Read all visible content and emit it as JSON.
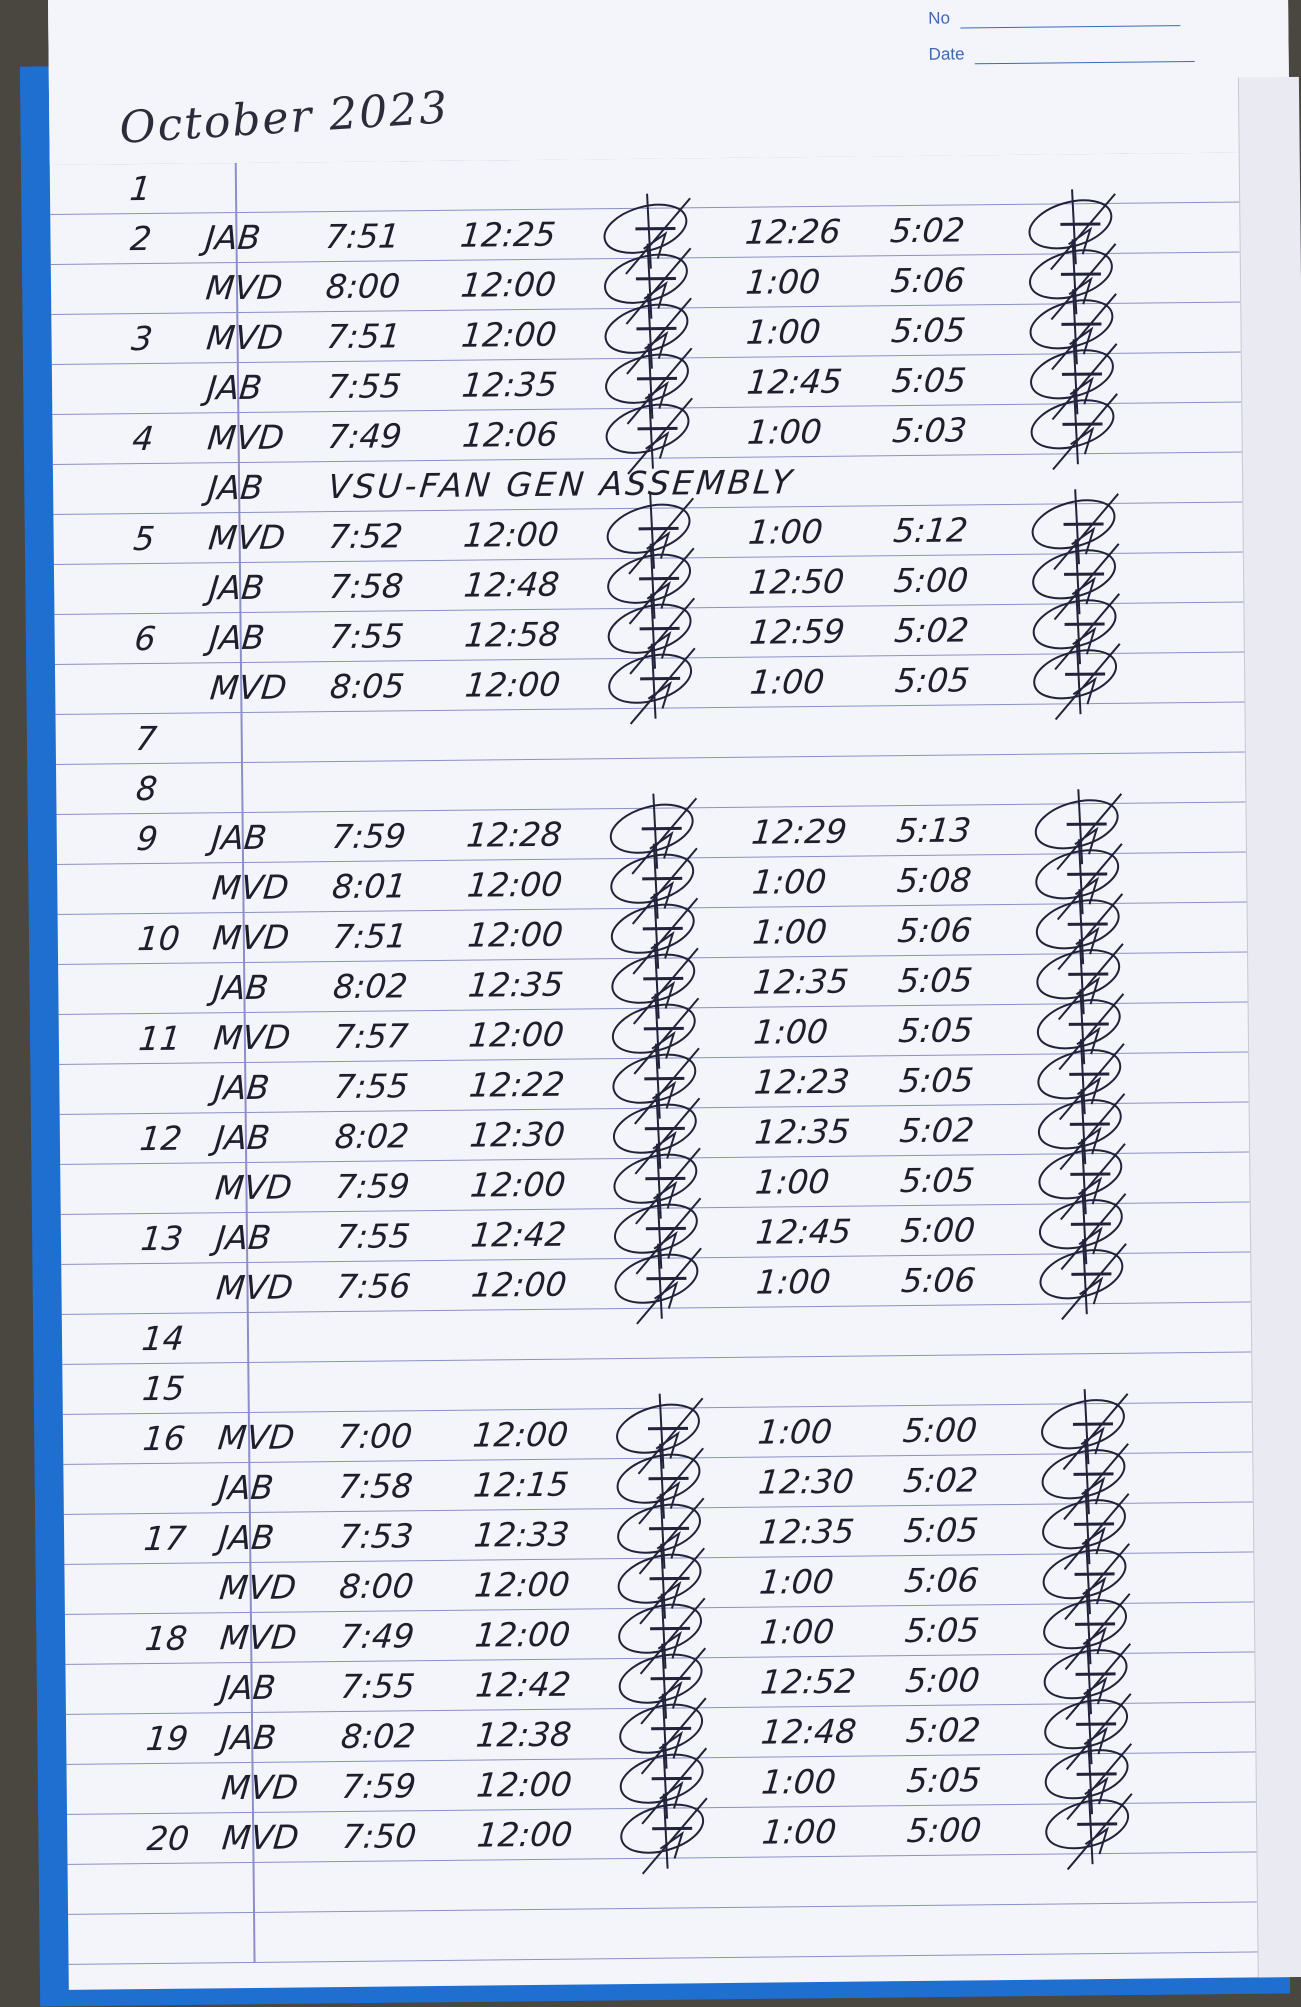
{
  "header": {
    "no_label": "No",
    "date_label": "Date"
  },
  "title": "October 2023",
  "colors": {
    "ink": "#1e1e2c",
    "ruling": "#8c8fc8",
    "cover": "#1f6fd0",
    "paper": "#f4f5fa"
  },
  "entries": [
    {
      "day": "1",
      "initials": "",
      "time_in": "",
      "lunch_out": "",
      "lunch_in": "",
      "time_out": "",
      "note": ""
    },
    {
      "day": "2",
      "initials": "JAB",
      "time_in": "7:51",
      "lunch_out": "12:25",
      "lunch_in": "12:26",
      "time_out": "5:02",
      "note": ""
    },
    {
      "day": "",
      "initials": "MVD",
      "time_in": "8:00",
      "lunch_out": "12:00",
      "lunch_in": "1:00",
      "time_out": "5:06",
      "note": ""
    },
    {
      "day": "3",
      "initials": "MVD",
      "time_in": "7:51",
      "lunch_out": "12:00",
      "lunch_in": "1:00",
      "time_out": "5:05",
      "note": ""
    },
    {
      "day": "",
      "initials": "JAB",
      "time_in": "7:55",
      "lunch_out": "12:35",
      "lunch_in": "12:45",
      "time_out": "5:05",
      "note": ""
    },
    {
      "day": "4",
      "initials": "MVD",
      "time_in": "7:49",
      "lunch_out": "12:06",
      "lunch_in": "1:00",
      "time_out": "5:03",
      "note": ""
    },
    {
      "day": "",
      "initials": "JAB",
      "time_in": "",
      "lunch_out": "",
      "lunch_in": "",
      "time_out": "",
      "note": "VSU-FAN GEN ASSEMBLY"
    },
    {
      "day": "5",
      "initials": "MVD",
      "time_in": "7:52",
      "lunch_out": "12:00",
      "lunch_in": "1:00",
      "time_out": "5:12",
      "note": ""
    },
    {
      "day": "",
      "initials": "JAB",
      "time_in": "7:58",
      "lunch_out": "12:48",
      "lunch_in": "12:50",
      "time_out": "5:00",
      "note": ""
    },
    {
      "day": "6",
      "initials": "JAB",
      "time_in": "7:55",
      "lunch_out": "12:58",
      "lunch_in": "12:59",
      "time_out": "5:02",
      "note": ""
    },
    {
      "day": "",
      "initials": "MVD",
      "time_in": "8:05",
      "lunch_out": "12:00",
      "lunch_in": "1:00",
      "time_out": "5:05",
      "note": ""
    },
    {
      "day": "7",
      "initials": "",
      "time_in": "",
      "lunch_out": "",
      "lunch_in": "",
      "time_out": "",
      "note": ""
    },
    {
      "day": "8",
      "initials": "",
      "time_in": "",
      "lunch_out": "",
      "lunch_in": "",
      "time_out": "",
      "note": ""
    },
    {
      "day": "9",
      "initials": "JAB",
      "time_in": "7:59",
      "lunch_out": "12:28",
      "lunch_in": "12:29",
      "time_out": "5:13",
      "note": ""
    },
    {
      "day": "",
      "initials": "MVD",
      "time_in": "8:01",
      "lunch_out": "12:00",
      "lunch_in": "1:00",
      "time_out": "5:08",
      "note": ""
    },
    {
      "day": "10",
      "initials": "MVD",
      "time_in": "7:51",
      "lunch_out": "12:00",
      "lunch_in": "1:00",
      "time_out": "5:06",
      "note": ""
    },
    {
      "day": "",
      "initials": "JAB",
      "time_in": "8:02",
      "lunch_out": "12:35",
      "lunch_in": "12:35",
      "time_out": "5:05",
      "note": ""
    },
    {
      "day": "11",
      "initials": "MVD",
      "time_in": "7:57",
      "lunch_out": "12:00",
      "lunch_in": "1:00",
      "time_out": "5:05",
      "note": ""
    },
    {
      "day": "",
      "initials": "JAB",
      "time_in": "7:55",
      "lunch_out": "12:22",
      "lunch_in": "12:23",
      "time_out": "5:05",
      "note": ""
    },
    {
      "day": "12",
      "initials": "JAB",
      "time_in": "8:02",
      "lunch_out": "12:30",
      "lunch_in": "12:35",
      "time_out": "5:02",
      "note": ""
    },
    {
      "day": "",
      "initials": "MVD",
      "time_in": "7:59",
      "lunch_out": "12:00",
      "lunch_in": "1:00",
      "time_out": "5:05",
      "note": ""
    },
    {
      "day": "13",
      "initials": "JAB",
      "time_in": "7:55",
      "lunch_out": "12:42",
      "lunch_in": "12:45",
      "time_out": "5:00",
      "note": ""
    },
    {
      "day": "",
      "initials": "MVD",
      "time_in": "7:56",
      "lunch_out": "12:00",
      "lunch_in": "1:00",
      "time_out": "5:06",
      "note": ""
    },
    {
      "day": "14",
      "initials": "",
      "time_in": "",
      "lunch_out": "",
      "lunch_in": "",
      "time_out": "",
      "note": ""
    },
    {
      "day": "15",
      "initials": "",
      "time_in": "",
      "lunch_out": "",
      "lunch_in": "",
      "time_out": "",
      "note": ""
    },
    {
      "day": "16",
      "initials": "MVD",
      "time_in": "7:00",
      "lunch_out": "12:00",
      "lunch_in": "1:00",
      "time_out": "5:00",
      "note": ""
    },
    {
      "day": "",
      "initials": "JAB",
      "time_in": "7:58",
      "lunch_out": "12:15",
      "lunch_in": "12:30",
      "time_out": "5:02",
      "note": ""
    },
    {
      "day": "17",
      "initials": "JAB",
      "time_in": "7:53",
      "lunch_out": "12:33",
      "lunch_in": "12:35",
      "time_out": "5:05",
      "note": ""
    },
    {
      "day": "",
      "initials": "MVD",
      "time_in": "8:00",
      "lunch_out": "12:00",
      "lunch_in": "1:00",
      "time_out": "5:06",
      "note": ""
    },
    {
      "day": "18",
      "initials": "MVD",
      "time_in": "7:49",
      "lunch_out": "12:00",
      "lunch_in": "1:00",
      "time_out": "5:05",
      "note": ""
    },
    {
      "day": "",
      "initials": "JAB",
      "time_in": "7:55",
      "lunch_out": "12:42",
      "lunch_in": "12:52",
      "time_out": "5:00",
      "note": ""
    },
    {
      "day": "19",
      "initials": "JAB",
      "time_in": "8:02",
      "lunch_out": "12:38",
      "lunch_in": "12:48",
      "time_out": "5:02",
      "note": ""
    },
    {
      "day": "",
      "initials": "MVD",
      "time_in": "7:59",
      "lunch_out": "12:00",
      "lunch_in": "1:00",
      "time_out": "5:05",
      "note": ""
    },
    {
      "day": "20",
      "initials": "MVD",
      "time_in": "7:50",
      "lunch_out": "12:00",
      "lunch_in": "1:00",
      "time_out": "5:00",
      "note": ""
    }
  ]
}
